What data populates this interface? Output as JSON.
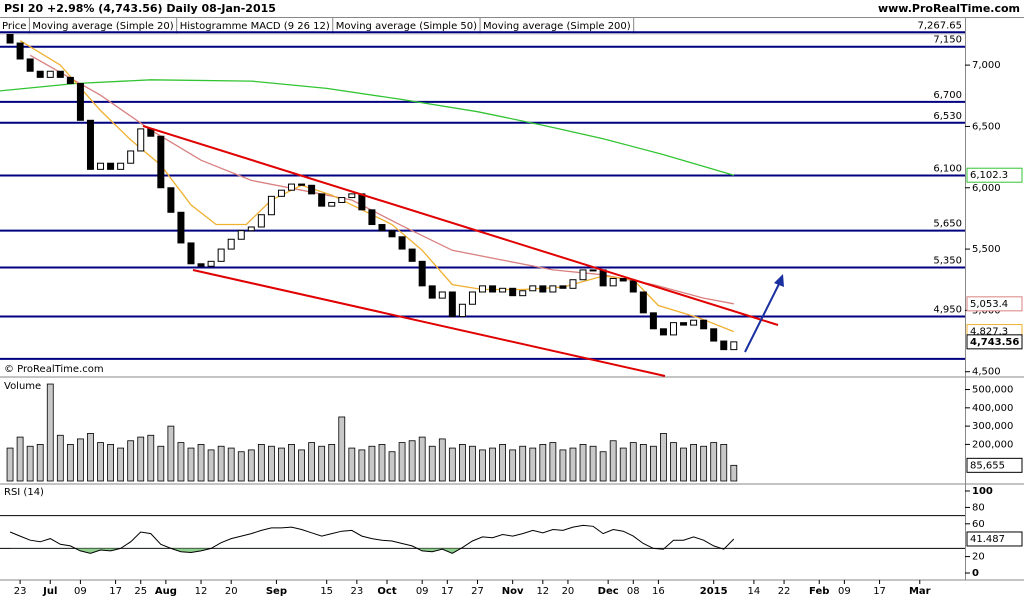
{
  "header": {
    "title": "PSI 20  +2.98% (4,743.56)  Daily  08-Jan-2015",
    "site": "www.ProRealTime.com"
  },
  "chart_data": {
    "type": "candlestick",
    "legend": [
      {
        "text": "Price",
        "color": "#000000"
      },
      {
        "text": "Moving average (Simple 20)",
        "color": "#e8a020"
      },
      {
        "text": "Histogramme MACD (9 26 12)",
        "color": "#000000"
      },
      {
        "text": "Moving average (Simple 50)",
        "color": "#d96b6b"
      },
      {
        "text": "Moving average (Simple 200)",
        "color": "#33c433"
      }
    ],
    "watermark": "© ProRealTime.com",
    "xlim": [
      0,
      192
    ],
    "xticks": [
      {
        "value": 4,
        "label": "23"
      },
      {
        "value": 10,
        "label": "Jul"
      },
      {
        "value": 16,
        "label": "09"
      },
      {
        "value": 23,
        "label": "17"
      },
      {
        "value": 28,
        "label": "25"
      },
      {
        "value": 33,
        "label": "Aug"
      },
      {
        "value": 40,
        "label": "12"
      },
      {
        "value": 46,
        "label": "20"
      },
      {
        "value": 55,
        "label": "Sep"
      },
      {
        "value": 65,
        "label": "15"
      },
      {
        "value": 71,
        "label": "23"
      },
      {
        "value": 77,
        "label": "Oct"
      },
      {
        "value": 84,
        "label": "09"
      },
      {
        "value": 89,
        "label": "17"
      },
      {
        "value": 95,
        "label": "27"
      },
      {
        "value": 102,
        "label": "Nov"
      },
      {
        "value": 108,
        "label": "12"
      },
      {
        "value": 113,
        "label": "20"
      },
      {
        "value": 121,
        "label": "Dec"
      },
      {
        "value": 126,
        "label": "08"
      },
      {
        "value": 131,
        "label": "16"
      },
      {
        "value": 142,
        "label": "2015"
      },
      {
        "value": 150,
        "label": "14"
      },
      {
        "value": 156,
        "label": "22"
      },
      {
        "value": 163,
        "label": "Feb"
      },
      {
        "value": 168,
        "label": "09"
      },
      {
        "value": 175,
        "label": "17"
      },
      {
        "value": 183,
        "label": "Mar"
      }
    ],
    "x": [
      2,
      4,
      6,
      8,
      10,
      12,
      14,
      16,
      18,
      20,
      22,
      24,
      26,
      28,
      30,
      32,
      34,
      36,
      38,
      40,
      42,
      44,
      46,
      48,
      50,
      52,
      54,
      56,
      58,
      60,
      62,
      64,
      66,
      68,
      70,
      72,
      74,
      76,
      78,
      80,
      82,
      84,
      86,
      88,
      90,
      92,
      94,
      96,
      98,
      100,
      102,
      104,
      106,
      108,
      110,
      112,
      114,
      116,
      118,
      120,
      122,
      124,
      126,
      128,
      130,
      132,
      134,
      136,
      138,
      140,
      142,
      144,
      146
    ],
    "price": {
      "ylim": [
        4465,
        7270
      ],
      "yticks": [
        {
          "value": 7000,
          "label": "7,000"
        },
        {
          "value": 6500,
          "label": "6,500"
        },
        {
          "value": 6000,
          "label": "6,000"
        },
        {
          "value": 5500,
          "label": "5,500"
        },
        {
          "value": 5000,
          "label": "5,000"
        },
        {
          "value": 4500,
          "label": "4,500"
        }
      ],
      "open": [
        7250,
        7180,
        7050,
        6950,
        6900,
        6950,
        6900,
        6850,
        6550,
        6150,
        6200,
        6150,
        6200,
        6300,
        6480,
        6420,
        6000,
        5800,
        5550,
        5380,
        5360,
        5400,
        5500,
        5580,
        5650,
        5680,
        5780,
        5930,
        5980,
        6030,
        6020,
        5950,
        5850,
        5880,
        5920,
        5950,
        5820,
        5700,
        5650,
        5600,
        5500,
        5400,
        5200,
        5100,
        5150,
        4950,
        5050,
        5150,
        5200,
        5150,
        5180,
        5120,
        5160,
        5200,
        5150,
        5200,
        5180,
        5250,
        5330,
        5330,
        5200,
        5260,
        5240,
        5150,
        4980,
        4850,
        4800,
        4900,
        4880,
        4920,
        4850,
        4750,
        4680
      ],
      "close": [
        7180,
        7050,
        6950,
        6900,
        6950,
        6900,
        6850,
        6550,
        6150,
        6200,
        6150,
        6200,
        6300,
        6480,
        6420,
        6000,
        5800,
        5550,
        5380,
        5360,
        5400,
        5500,
        5580,
        5650,
        5680,
        5780,
        5930,
        5980,
        6030,
        6020,
        5950,
        5850,
        5880,
        5920,
        5950,
        5820,
        5700,
        5650,
        5600,
        5500,
        5400,
        5200,
        5100,
        5150,
        4950,
        5050,
        5150,
        5200,
        5150,
        5180,
        5120,
        5160,
        5200,
        5150,
        5200,
        5180,
        5250,
        5330,
        5330,
        5200,
        5260,
        5240,
        5150,
        4980,
        4850,
        4800,
        4900,
        4880,
        4920,
        4850,
        4750,
        4680,
        4743.56
      ],
      "last_label": "4,743.56",
      "levels": [
        {
          "value": 7267.65,
          "label": "7,267.65"
        },
        {
          "value": 7150,
          "label": "7,150"
        },
        {
          "value": 6700,
          "label": "6,700"
        },
        {
          "value": 6530,
          "label": "6,530"
        },
        {
          "value": 6100,
          "label": "6,100"
        },
        {
          "value": 5650,
          "label": "5,650"
        },
        {
          "value": 5350,
          "label": "5,350"
        },
        {
          "value": 4950,
          "label": "4,950"
        },
        {
          "value": 4605,
          "label": null
        }
      ]
    },
    "moving_averages": [
      {
        "name": "Moving average (Simple 200)",
        "color": "#33c433",
        "x": [
          0,
          15,
          30,
          50,
          65,
          80,
          95,
          108,
          120,
          132,
          146
        ],
        "values": [
          6790,
          6850,
          6880,
          6870,
          6810,
          6720,
          6620,
          6510,
          6400,
          6270,
          6102.3
        ],
        "last_label": "6,102.3"
      },
      {
        "name": "Moving average (Simple 50)",
        "color": "#d98080",
        "x": [
          6,
          20,
          30,
          40,
          50,
          60,
          70,
          80,
          90,
          100,
          110,
          120,
          130,
          140,
          146
        ],
        "values": [
          7080,
          6755,
          6470,
          6225,
          6060,
          5980,
          5900,
          5690,
          5490,
          5410,
          5330,
          5290,
          5210,
          5100,
          5053.4
        ],
        "last_label": "5,053.4"
      },
      {
        "name": "Moving average (Simple 20)",
        "color": "#f0b030",
        "x": [
          4,
          12,
          20,
          26,
          32,
          38,
          43,
          49,
          54,
          60,
          66,
          72,
          78,
          84,
          90,
          96,
          104,
          112,
          120,
          126,
          131,
          139,
          146
        ],
        "values": [
          7200,
          7000,
          6630,
          6390,
          6185,
          5860,
          5700,
          5700,
          5900,
          6020,
          5940,
          5820,
          5700,
          5490,
          5210,
          5170,
          5170,
          5190,
          5280,
          5250,
          5040,
          4940,
          4827.3
        ],
        "last_label": "4,827.3"
      }
    ],
    "volume": {
      "title": "Volume",
      "ylim": [
        0,
        563000
      ],
      "yticks": [
        {
          "value": 500000,
          "label": "500,000"
        },
        {
          "value": 400000,
          "label": "400,000"
        },
        {
          "value": 300000,
          "label": "300,000"
        },
        {
          "value": 200000,
          "label": "200,000"
        }
      ],
      "values": [
        180000,
        240000,
        190000,
        200000,
        530000,
        250000,
        200000,
        230000,
        260000,
        210000,
        200000,
        180000,
        220000,
        240000,
        250000,
        190000,
        300000,
        210000,
        180000,
        200000,
        170000,
        190000,
        180000,
        160000,
        170000,
        200000,
        190000,
        180000,
        200000,
        170000,
        210000,
        190000,
        200000,
        350000,
        180000,
        170000,
        190000,
        200000,
        160000,
        210000,
        220000,
        240000,
        190000,
        230000,
        180000,
        200000,
        190000,
        170000,
        180000,
        200000,
        170000,
        190000,
        180000,
        200000,
        210000,
        170000,
        180000,
        200000,
        190000,
        160000,
        220000,
        180000,
        210000,
        200000,
        190000,
        260000,
        210000,
        180000,
        200000,
        190000,
        210000,
        200000,
        85655
      ],
      "last_label": "85,655"
    },
    "rsi": {
      "title": "RSI (14)",
      "ylim": [
        0,
        100
      ],
      "yticks": [
        100,
        80,
        60,
        20,
        0
      ],
      "bands": [
        30,
        70
      ],
      "values": [
        50,
        45,
        40,
        38,
        42,
        35,
        33,
        27,
        24,
        28,
        27,
        30,
        38,
        50,
        48,
        35,
        30,
        26,
        25,
        27,
        30,
        37,
        42,
        45,
        48,
        52,
        55,
        55,
        56,
        53,
        49,
        45,
        48,
        51,
        52,
        45,
        42,
        40,
        39,
        36,
        33,
        27,
        26,
        29,
        24,
        31,
        39,
        44,
        43,
        47,
        45,
        48,
        52,
        49,
        53,
        52,
        56,
        58,
        57,
        48,
        53,
        51,
        45,
        36,
        30,
        29,
        40,
        40,
        44,
        40,
        33,
        29,
        41.487
      ],
      "last_label": "41.487"
    }
  }
}
